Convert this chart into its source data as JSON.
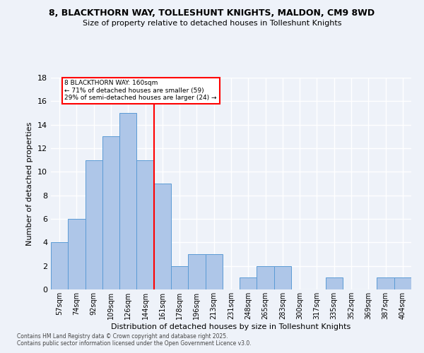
{
  "title": "8, BLACKTHORN WAY, TOLLESHUNT KNIGHTS, MALDON, CM9 8WD",
  "subtitle": "Size of property relative to detached houses in Tolleshunt Knights",
  "xlabel": "Distribution of detached houses by size in Tolleshunt Knights",
  "ylabel": "Number of detached properties",
  "categories": [
    "57sqm",
    "74sqm",
    "92sqm",
    "109sqm",
    "126sqm",
    "144sqm",
    "161sqm",
    "178sqm",
    "196sqm",
    "213sqm",
    "231sqm",
    "248sqm",
    "265sqm",
    "283sqm",
    "300sqm",
    "317sqm",
    "335sqm",
    "352sqm",
    "369sqm",
    "387sqm",
    "404sqm"
  ],
  "values": [
    4,
    6,
    11,
    13,
    15,
    11,
    9,
    2,
    3,
    3,
    0,
    1,
    2,
    2,
    0,
    0,
    1,
    0,
    0,
    1,
    1
  ],
  "bar_color": "#aec6e8",
  "bar_edge_color": "#5b9bd5",
  "reference_line_index": 6,
  "annotation_line1": "8 BLACKTHORN WAY: 160sqm",
  "annotation_line2": "← 71% of detached houses are smaller (59)",
  "annotation_line3": "29% of semi-detached houses are larger (24) →",
  "ylim": [
    0,
    18
  ],
  "yticks": [
    0,
    2,
    4,
    6,
    8,
    10,
    12,
    14,
    16,
    18
  ],
  "background_color": "#eef2f9",
  "grid_color": "#ffffff",
  "footnote1": "Contains HM Land Registry data © Crown copyright and database right 2025.",
  "footnote2": "Contains public sector information licensed under the Open Government Licence v3.0."
}
